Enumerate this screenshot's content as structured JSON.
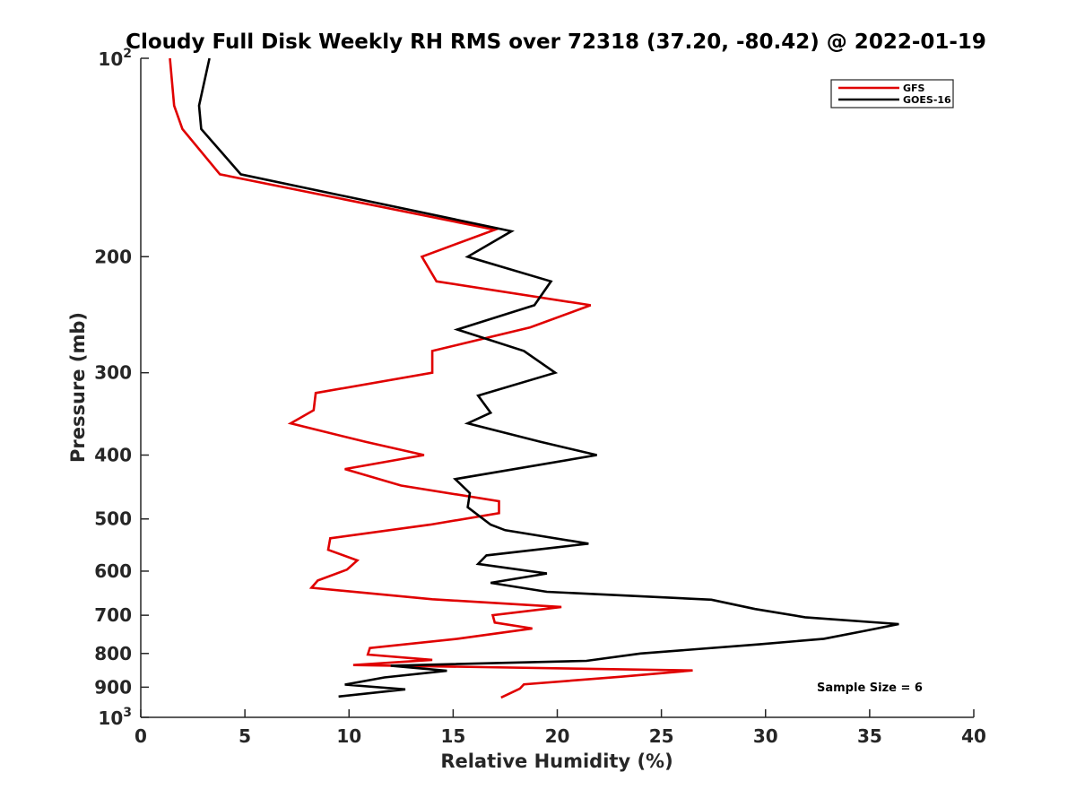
{
  "chart_data": {
    "type": "line",
    "title": "Cloudy Full Disk Weekly RH RMS over 72318 (37.20, -80.42) @ 2022-01-19",
    "xlabel": "Relative Humidity (%)",
    "ylabel": "Pressure (mb)",
    "xlim": [
      0,
      40
    ],
    "ylim": [
      100,
      1000
    ],
    "yscale": "log",
    "y_reversed": true,
    "grid": false,
    "legend_position": "top-right",
    "x_ticks": [
      0,
      5,
      10,
      15,
      20,
      25,
      30,
      35,
      40
    ],
    "x_tick_labels": [
      "0",
      "5",
      "10",
      "15",
      "20",
      "25",
      "30",
      "35",
      "40"
    ],
    "y_ticks": [
      200,
      300,
      400,
      500,
      600,
      700,
      800,
      900
    ],
    "y_tick_labels": [
      "200",
      "300",
      "400",
      "500",
      "600",
      "700",
      "800",
      "900"
    ],
    "y_end_ticks": [
      {
        "value": 100,
        "base": "10",
        "exp": "2"
      },
      {
        "value": 1000,
        "base": "10",
        "exp": "3"
      }
    ],
    "annotation": "Sample Size = 6",
    "series": [
      {
        "name": "GFS",
        "color": "#e00000",
        "points": [
          [
            1.4,
            100
          ],
          [
            1.6,
            118
          ],
          [
            2.0,
            128
          ],
          [
            3.8,
            150
          ],
          [
            17.0,
            182
          ],
          [
            13.5,
            200
          ],
          [
            14.2,
            218
          ],
          [
            21.6,
            237
          ],
          [
            18.7,
            256
          ],
          [
            14.0,
            278
          ],
          [
            14.0,
            300
          ],
          [
            8.4,
            322
          ],
          [
            8.3,
            342
          ],
          [
            7.2,
            358
          ],
          [
            10.8,
            382
          ],
          [
            13.6,
            400
          ],
          [
            9.8,
            420
          ],
          [
            12.5,
            445
          ],
          [
            17.2,
            470
          ],
          [
            17.2,
            490
          ],
          [
            13.9,
            510
          ],
          [
            9.1,
            535
          ],
          [
            9.0,
            557
          ],
          [
            10.4,
            578
          ],
          [
            9.9,
            597
          ],
          [
            8.5,
            620
          ],
          [
            8.2,
            636
          ],
          [
            14.0,
            662
          ],
          [
            20.2,
            680
          ],
          [
            16.9,
            700
          ],
          [
            17.0,
            718
          ],
          [
            18.8,
            733
          ],
          [
            15.2,
            760
          ],
          [
            11.0,
            785
          ],
          [
            10.9,
            803
          ],
          [
            14.0,
            818
          ],
          [
            10.2,
            833
          ],
          [
            26.5,
            849
          ],
          [
            23.0,
            868
          ],
          [
            18.4,
            891
          ],
          [
            18.2,
            905
          ],
          [
            17.3,
            933
          ]
        ]
      },
      {
        "name": "GOES-16",
        "color": "#000000",
        "points": [
          [
            3.3,
            100
          ],
          [
            2.8,
            118
          ],
          [
            2.9,
            128
          ],
          [
            4.8,
            150
          ],
          [
            17.8,
            183
          ],
          [
            15.7,
            200
          ],
          [
            19.7,
            218
          ],
          [
            18.9,
            237
          ],
          [
            15.2,
            258
          ],
          [
            18.4,
            278
          ],
          [
            19.9,
            300
          ],
          [
            16.2,
            325
          ],
          [
            16.8,
            345
          ],
          [
            15.7,
            358
          ],
          [
            19.2,
            382
          ],
          [
            21.9,
            400
          ],
          [
            15.1,
            435
          ],
          [
            15.8,
            457
          ],
          [
            15.7,
            480
          ],
          [
            16.8,
            510
          ],
          [
            17.5,
            520
          ],
          [
            21.5,
            545
          ],
          [
            16.6,
            568
          ],
          [
            16.2,
            585
          ],
          [
            19.5,
            605
          ],
          [
            16.8,
            625
          ],
          [
            19.5,
            645
          ],
          [
            27.4,
            663
          ],
          [
            29.5,
            685
          ],
          [
            31.9,
            705
          ],
          [
            36.4,
            722
          ],
          [
            34.7,
            740
          ],
          [
            32.8,
            760
          ],
          [
            29.7,
            775
          ],
          [
            24.0,
            800
          ],
          [
            21.4,
            821
          ],
          [
            12.0,
            835
          ],
          [
            14.7,
            850
          ],
          [
            11.7,
            870
          ],
          [
            9.8,
            892
          ],
          [
            12.7,
            907
          ],
          [
            9.5,
            930
          ]
        ]
      }
    ]
  }
}
